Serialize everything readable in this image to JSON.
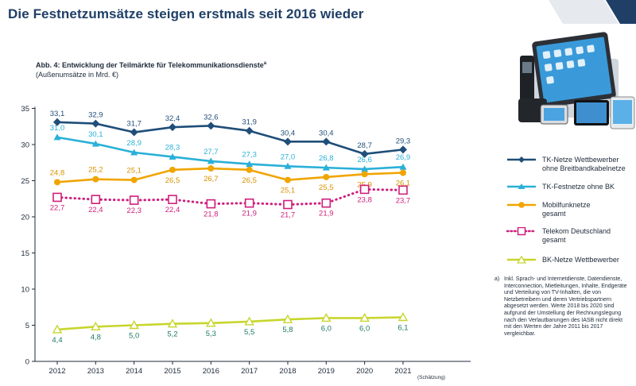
{
  "header": {
    "headline": "Die Festnetzumsätze steigen erstmals seit 2016 wieder"
  },
  "figure": {
    "title": "Abb. 4: Entwicklung der Teilmärkte für Telekommunikationsdienste",
    "title_sup": "a",
    "subtitle": "(Außenumsätze in Mrd. €)",
    "estimate_note": "(Schätzung)",
    "footnote_mark": "a)",
    "footnote": "Inkl. Sprach- und Internetdienste, Datendienste, Interconnection, Mietleitungen, Inhalte, Endgeräte und Verteilung von TV-Inhalten, die von Netzbetreibern und deren Vertriebspartnern abgesetzt werden. Werte 2018 bis 2020 sind aufgrund der Umstellung der Rechnungslegung nach den Verlautbarungen des IASB nicht direkt mit den Werten der Jahre 2011 bis 2017 vergleichbar."
  },
  "chart_data": {
    "type": "line",
    "x": [
      "2012",
      "2013",
      "2014",
      "2015",
      "2016",
      "2017",
      "2018",
      "2019",
      "2020",
      "2021"
    ],
    "ylim": [
      0,
      35
    ],
    "yticks": [
      0,
      5,
      10,
      15,
      20,
      25,
      30,
      35
    ],
    "grid": false,
    "legend_position": "right",
    "series": [
      {
        "name": "TK-Netze Wettbewerber ohne Breitbandkabelnetze",
        "legend_lines": [
          "TK-Netze Wettbewerber",
          "ohne Breitbandkabelnetze"
        ],
        "color": "#1f4e79",
        "marker": "diamond",
        "dash": "solid",
        "values": [
          33.1,
          32.9,
          31.7,
          32.4,
          32.6,
          31.9,
          30.4,
          30.4,
          28.7,
          29.3
        ],
        "labels": [
          "33,1",
          "32,9",
          "31,7",
          "32,4",
          "32,6",
          "31,9",
          "30,4",
          "30,4",
          "28,7",
          "29,3"
        ]
      },
      {
        "name": "TK-Festnetze ohne BK",
        "legend_lines": [
          "TK-Festnetze ohne BK"
        ],
        "color": "#2ab0d8",
        "marker": "triangle",
        "dash": "solid",
        "values": [
          31.0,
          30.1,
          28.9,
          28.3,
          27.7,
          27.3,
          27.0,
          26.8,
          26.6,
          26.9
        ],
        "labels": [
          "31,0",
          "30,1",
          "28,9",
          "28,3",
          "27,7",
          "27,3",
          "27,0",
          "26,8",
          "26,6",
          "26,9"
        ]
      },
      {
        "name": "Mobilfunknetze gesamt",
        "legend_lines": [
          "Mobilfunknetze",
          "gesamt"
        ],
        "color": "#f0a500",
        "marker": "circle",
        "dash": "solid",
        "values": [
          24.8,
          25.2,
          25.1,
          26.5,
          26.7,
          26.5,
          25.1,
          25.5,
          25.9,
          26.1
        ],
        "labels": [
          "24,8",
          "25,2",
          "25,1",
          "26,5",
          "26,7",
          "26,5",
          "25,1",
          "25,5",
          "25,9",
          "26,1"
        ]
      },
      {
        "name": "Telekom Deutschland gesamt",
        "legend_lines": [
          "Telekom Deutschland",
          "gesamt"
        ],
        "color": "#cf1f7c",
        "marker": "square",
        "dash": "dotted",
        "values": [
          22.7,
          22.4,
          22.3,
          22.4,
          21.8,
          21.9,
          21.7,
          21.9,
          23.8,
          23.7
        ],
        "labels": [
          "22,7",
          "22,4",
          "22,3",
          "22,4",
          "21,8",
          "21,9",
          "21,7",
          "21,9",
          "23,8",
          "23,7"
        ]
      },
      {
        "name": "BK-Netze Wettbewerber",
        "legend_lines": [
          "BK-Netze Wettbewerber"
        ],
        "color": "#c7d62c",
        "marker": "triangle-open",
        "dash": "solid",
        "values": [
          4.4,
          4.8,
          5.0,
          5.2,
          5.3,
          5.5,
          5.8,
          6.0,
          6.0,
          6.1
        ],
        "labels": [
          "4,4",
          "4,8",
          "5,0",
          "5,2",
          "5,3",
          "5,5",
          "5,8",
          "6,0",
          "6,0",
          "6,1"
        ]
      }
    ]
  }
}
